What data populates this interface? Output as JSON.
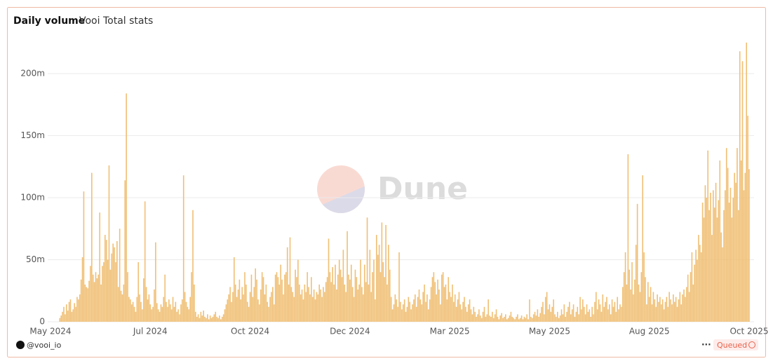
{
  "header": {
    "title": "Daily volume",
    "subtitle": "Vooi Total stats"
  },
  "watermark": "Dune",
  "footer": {
    "author": "@vooi_io",
    "menu": "···",
    "status": "Queued"
  },
  "chart_data": {
    "type": "bar",
    "color": "#f0bf74",
    "grid": true,
    "ylim": [
      0,
      230
    ],
    "yticks": [
      {
        "value": 0,
        "label": "0"
      },
      {
        "value": 50,
        "label": "50m"
      },
      {
        "value": 100,
        "label": "100m"
      },
      {
        "value": 150,
        "label": "150m"
      },
      {
        "value": 200,
        "label": "200m"
      }
    ],
    "categories": [
      "May 2024",
      null,
      null,
      null,
      null,
      null,
      null,
      null,
      null,
      null,
      null,
      null,
      null,
      null,
      null,
      null,
      null,
      null,
      null,
      null,
      null,
      null,
      null,
      null,
      null,
      null,
      null,
      null,
      null,
      null,
      null,
      null,
      null,
      null,
      null,
      null,
      null,
      null,
      null,
      null,
      null,
      null,
      null,
      null,
      null,
      null,
      null,
      null,
      null,
      null,
      null,
      null,
      null,
      null,
      null,
      null,
      null,
      null,
      null,
      null,
      null,
      null,
      null,
      null,
      null,
      null,
      null,
      null,
      null,
      null,
      null,
      null,
      null,
      null,
      null,
      "Jul 2024",
      null,
      null,
      null,
      null,
      null,
      null,
      null,
      null,
      null,
      null,
      null,
      null,
      null,
      null,
      null,
      null,
      null,
      null,
      null,
      null,
      null,
      null,
      null,
      null,
      null,
      null,
      null,
      null,
      null,
      null,
      null,
      null,
      null,
      null,
      null,
      null,
      null,
      null,
      null,
      null,
      null,
      null,
      null,
      null,
      null,
      null,
      null,
      null,
      null,
      null,
      null,
      null,
      null,
      null,
      null,
      null,
      null,
      null,
      null,
      null,
      null,
      null,
      null,
      null,
      null,
      null,
      null,
      null,
      null,
      null,
      null,
      null,
      null,
      null,
      "Oct 2024",
      null,
      null,
      null,
      null,
      null,
      null,
      null,
      null,
      null,
      null,
      null,
      null,
      null,
      null,
      null,
      null,
      null,
      null,
      null,
      null,
      null,
      null,
      null,
      null,
      null,
      null,
      null,
      null,
      null,
      null,
      null,
      null,
      null,
      null,
      null,
      null,
      null,
      null,
      null,
      null,
      null,
      null,
      null,
      null,
      null,
      null,
      null,
      null,
      null,
      null,
      null,
      null,
      null,
      null,
      null,
      null,
      null,
      null,
      null,
      null,
      null,
      null,
      null,
      null,
      null,
      null,
      null,
      null,
      null,
      null,
      null,
      null,
      null,
      null,
      "Dec 2024",
      null,
      null,
      null,
      null,
      null,
      null,
      null,
      null,
      null,
      null,
      null,
      null,
      null,
      null,
      null,
      null,
      null,
      null,
      null,
      null,
      null,
      null,
      null,
      null,
      null,
      null,
      null,
      null,
      null,
      null,
      null,
      null,
      null,
      null,
      null,
      null,
      null,
      null,
      null,
      null,
      null,
      null,
      null,
      null,
      null,
      null,
      null,
      null,
      null,
      null,
      null,
      null,
      null,
      null,
      null,
      null,
      null,
      null,
      null,
      null,
      null,
      null,
      null,
      null,
      null,
      null,
      null,
      null,
      null,
      null,
      null,
      null,
      null,
      null,
      "Mar 2025",
      null,
      null,
      null,
      null,
      null,
      null,
      null,
      null,
      null,
      null,
      null,
      null,
      null,
      null,
      null,
      null,
      null,
      null,
      null,
      null,
      null,
      null,
      null,
      null,
      null,
      null,
      null,
      null,
      null,
      null,
      null,
      null,
      null,
      null,
      null,
      null,
      null,
      null,
      null,
      null,
      null,
      null,
      null,
      null,
      null,
      null,
      null,
      null,
      null,
      null,
      null,
      null,
      null,
      null,
      null,
      null,
      null,
      null,
      null,
      null,
      null,
      null,
      null,
      null,
      null,
      null,
      null,
      null,
      null,
      null,
      null,
      null,
      null,
      null,
      "May 2025",
      null,
      null,
      null,
      null,
      null,
      null,
      null,
      null,
      null,
      null,
      null,
      null,
      null,
      null,
      null,
      null,
      null,
      null,
      null,
      null,
      null,
      null,
      null,
      null,
      null,
      null,
      null,
      null,
      null,
      null,
      null,
      null,
      null,
      null,
      null,
      null,
      null,
      null,
      null,
      null,
      null,
      null,
      null,
      null,
      null,
      null,
      null,
      null,
      null,
      null,
      null,
      null,
      null,
      null,
      null,
      null,
      null,
      null,
      null,
      null,
      null,
      null,
      null,
      null,
      null,
      null,
      null,
      null,
      null,
      null,
      null,
      null,
      null,
      null,
      "Aug 2025",
      null,
      null,
      null,
      null,
      null,
      null,
      null,
      null,
      null,
      null,
      null,
      null,
      null,
      null,
      null,
      null,
      null,
      null,
      null,
      null,
      null,
      null,
      null,
      null,
      null,
      null,
      null,
      null,
      null,
      null,
      null,
      null,
      null,
      null,
      null,
      null,
      null,
      null,
      null,
      null,
      null,
      null,
      null,
      null,
      null,
      null,
      null,
      null,
      null,
      null,
      null,
      null,
      null,
      null,
      null,
      null,
      null,
      null,
      null,
      null,
      null,
      null,
      null,
      null,
      null,
      null,
      null,
      null,
      null,
      null,
      null,
      null,
      null,
      null,
      "Oct 2025"
    ],
    "values": [
      0,
      0,
      0,
      0,
      0,
      0,
      0,
      3,
      5,
      8,
      12,
      6,
      14,
      9,
      16,
      18,
      8,
      10,
      15,
      12,
      20,
      18,
      22,
      34,
      52,
      105,
      30,
      28,
      27,
      33,
      45,
      120,
      38,
      32,
      40,
      35,
      38,
      88,
      30,
      45,
      48,
      70,
      66,
      50,
      126,
      42,
      55,
      63,
      60,
      48,
      65,
      28,
      75,
      25,
      22,
      30,
      114,
      184,
      40,
      20,
      18,
      14,
      16,
      12,
      8,
      20,
      48,
      22,
      16,
      10,
      35,
      97,
      28,
      18,
      22,
      14,
      10,
      12,
      26,
      64,
      15,
      10,
      8,
      14,
      12,
      20,
      38,
      16,
      12,
      18,
      14,
      10,
      20,
      12,
      16,
      8,
      10,
      6,
      14,
      18,
      118,
      24,
      16,
      12,
      10,
      20,
      40,
      90,
      30,
      8,
      4,
      6,
      3,
      8,
      5,
      9,
      4,
      3,
      6,
      2,
      5,
      3,
      4,
      6,
      8,
      4,
      3,
      5,
      2,
      4,
      6,
      10,
      14,
      18,
      22,
      28,
      16,
      24,
      52,
      30,
      20,
      26,
      34,
      18,
      28,
      22,
      40,
      30,
      16,
      12,
      24,
      38,
      20,
      28,
      43,
      34,
      18,
      14,
      26,
      40,
      36,
      22,
      30,
      16,
      12,
      20,
      24,
      28,
      14,
      38,
      40,
      36,
      30,
      46,
      34,
      22,
      38,
      40,
      60,
      30,
      68,
      28,
      24,
      20,
      42,
      36,
      50,
      30,
      22,
      26,
      18,
      30,
      24,
      40,
      28,
      22,
      36,
      20,
      26,
      18,
      24,
      22,
      30,
      26,
      20,
      28,
      24,
      32,
      36,
      67,
      40,
      32,
      44,
      30,
      46,
      26,
      38,
      50,
      42,
      36,
      58,
      30,
      24,
      73,
      38,
      34,
      46,
      28,
      20,
      42,
      36,
      26,
      30,
      50,
      28,
      22,
      46,
      32,
      84,
      30,
      58,
      24,
      40,
      50,
      18,
      70,
      54,
      62,
      40,
      80,
      48,
      36,
      78,
      30,
      62,
      42,
      20,
      10,
      14,
      22,
      18,
      12,
      56,
      16,
      10,
      14,
      18,
      8,
      12,
      20,
      16,
      10,
      14,
      18,
      22,
      12,
      20,
      26,
      18,
      14,
      24,
      30,
      16,
      22,
      10,
      18,
      28,
      36,
      40,
      32,
      22,
      34,
      26,
      14,
      38,
      40,
      28,
      30,
      18,
      36,
      24,
      20,
      30,
      16,
      22,
      12,
      18,
      24,
      14,
      10,
      16,
      20,
      12,
      8,
      14,
      18,
      10,
      6,
      12,
      8,
      4,
      6,
      10,
      5,
      3,
      8,
      12,
      4,
      6,
      18,
      5,
      4,
      8,
      3,
      6,
      10,
      4,
      2,
      5,
      7,
      3,
      4,
      6,
      2,
      3,
      5,
      8,
      4,
      3,
      2,
      4,
      6,
      2,
      3,
      5,
      2,
      4,
      3,
      6,
      2,
      18,
      4,
      3,
      6,
      8,
      5,
      10,
      4,
      7,
      12,
      16,
      6,
      20,
      24,
      10,
      14,
      8,
      12,
      18,
      6,
      4,
      8,
      3,
      5,
      10,
      6,
      14,
      4,
      8,
      12,
      16,
      6,
      10,
      14,
      4,
      8,
      12,
      6,
      20,
      10,
      18,
      12,
      6,
      14,
      8,
      10,
      4,
      12,
      6,
      16,
      24,
      10,
      18,
      14,
      8,
      22,
      12,
      16,
      20,
      10,
      14,
      6,
      18,
      12,
      16,
      8,
      20,
      10,
      14,
      12,
      28,
      40,
      56,
      30,
      135,
      42,
      26,
      48,
      22,
      34,
      62,
      95,
      30,
      24,
      40,
      118,
      56,
      36,
      14,
      32,
      20,
      28,
      14,
      24,
      18,
      12,
      22,
      16,
      20,
      14,
      18,
      10,
      16,
      20,
      12,
      24,
      18,
      14,
      22,
      16,
      20,
      12,
      18,
      24,
      14,
      22,
      26,
      20,
      28,
      38,
      24,
      40,
      56,
      30,
      46,
      58,
      50,
      70,
      62,
      56,
      96,
      84,
      110,
      100,
      138,
      90,
      104,
      70,
      106,
      92,
      112,
      84,
      98,
      130,
      72,
      60,
      90,
      106,
      140,
      124,
      96,
      108,
      84,
      100,
      120,
      112,
      140,
      90,
      218,
      130,
      210,
      106,
      120,
      225,
      166,
      123
    ]
  }
}
